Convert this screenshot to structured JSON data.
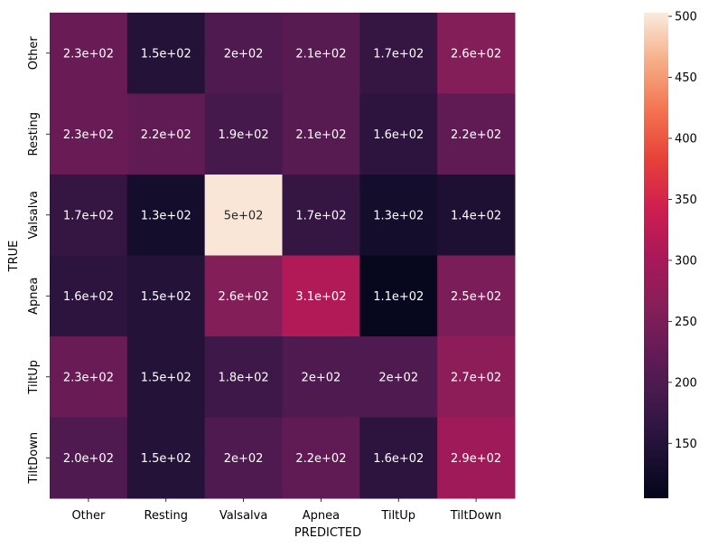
{
  "chart_data": {
    "type": "heatmap",
    "title": "",
    "xlabel": "PREDICTED",
    "ylabel": "TRUE",
    "x_categories": [
      "Other",
      "Resting",
      "Valsalva",
      "Apnea",
      "TiltUp",
      "TiltDown"
    ],
    "y_categories": [
      "Other",
      "Resting",
      "Valsalva",
      "Apnea",
      "TiltUp",
      "TiltDown"
    ],
    "values": [
      [
        230,
        150,
        200,
        210,
        170,
        260
      ],
      [
        230,
        220,
        190,
        210,
        160,
        220
      ],
      [
        170,
        130,
        500,
        170,
        130,
        140
      ],
      [
        160,
        150,
        260,
        310,
        110,
        250
      ],
      [
        230,
        150,
        180,
        200,
        200,
        270
      ],
      [
        200,
        150,
        200,
        220,
        160,
        290
      ]
    ],
    "annotations": [
      [
        "2.3e+02",
        "1.5e+02",
        "2e+02",
        "2.1e+02",
        "1.7e+02",
        "2.6e+02"
      ],
      [
        "2.3e+02",
        "2.2e+02",
        "1.9e+02",
        "2.1e+02",
        "1.6e+02",
        "2.2e+02"
      ],
      [
        "1.7e+02",
        "1.3e+02",
        "5e+02",
        "1.7e+02",
        "1.3e+02",
        "1.4e+02"
      ],
      [
        "1.6e+02",
        "1.5e+02",
        "2.6e+02",
        "3.1e+02",
        "1.1e+02",
        "2.5e+02"
      ],
      [
        "2.3e+02",
        "1.5e+02",
        "1.8e+02",
        "2e+02",
        "2e+02",
        "2.7e+02"
      ],
      [
        "2.0e+02",
        "1.5e+02",
        "2e+02",
        "2.2e+02",
        "1.6e+02",
        "2.9e+02"
      ]
    ],
    "colorbar": {
      "min": 105,
      "max": 503,
      "ticks": [
        150,
        200,
        250,
        300,
        350,
        400,
        450,
        500
      ],
      "colormap": "rocket"
    },
    "grid": false
  }
}
